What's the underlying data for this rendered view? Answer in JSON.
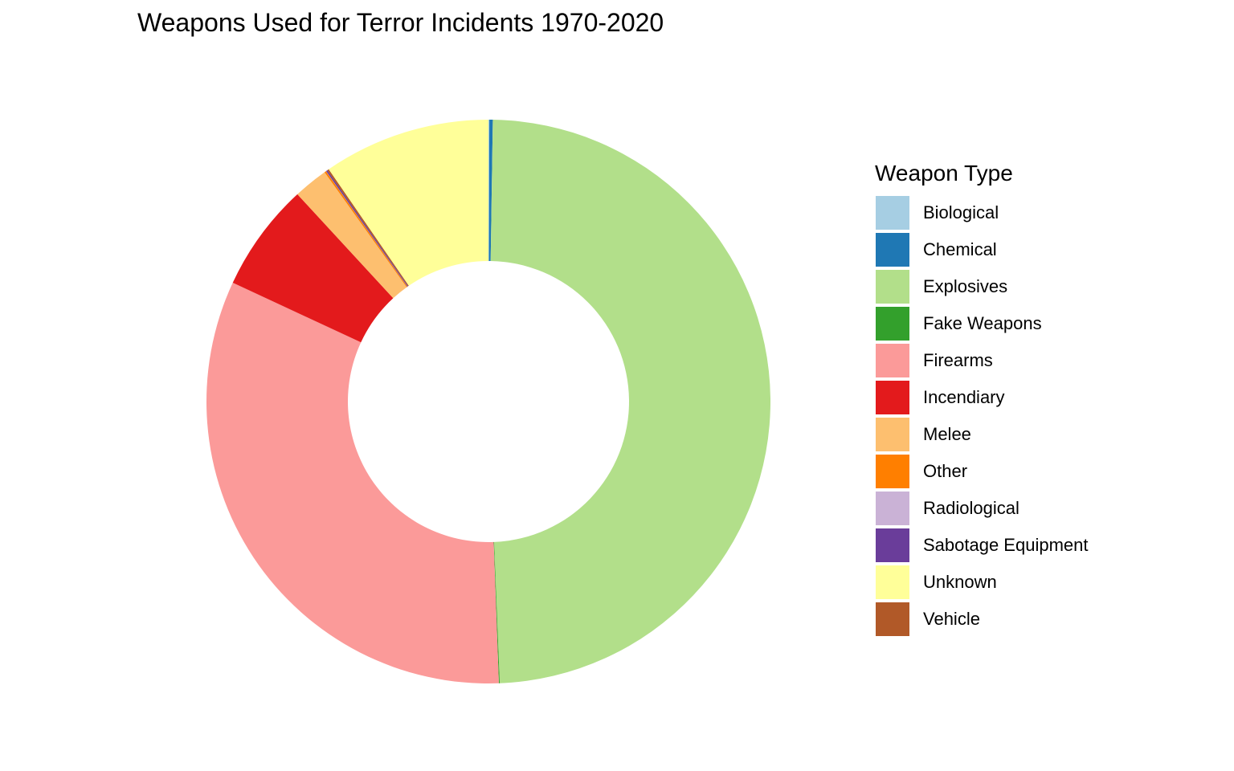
{
  "chart_data": {
    "type": "pie",
    "title": "Weapons Used for Terror Incidents 1970-2020",
    "legend_title": "Weapon Type",
    "legend_position": "right",
    "donut": true,
    "categories": [
      "Biological",
      "Chemical",
      "Explosives",
      "Fake Weapons",
      "Firearms",
      "Incendiary",
      "Melee",
      "Other",
      "Radiological",
      "Sabotage Equipment",
      "Unknown",
      "Vehicle"
    ],
    "colors": [
      "#A6CEE3",
      "#1F78B4",
      "#B2DF8A",
      "#33A02C",
      "#FB9A99",
      "#E31A1C",
      "#FDBF6F",
      "#FF7F00",
      "#CAB2D6",
      "#6A3D9A",
      "#FFFF99",
      "#B15928"
    ],
    "values": [
      0.05,
      0.2,
      49.7,
      0.05,
      32.9,
      6.3,
      2.0,
      0.1,
      0.01,
      0.08,
      9.7,
      0.1
    ],
    "slice_order": [
      "Biological",
      "Chemical",
      "Explosives",
      "Fake Weapons",
      "Firearms",
      "Incendiary",
      "Melee",
      "Other",
      "Radiological",
      "Sabotage Equipment",
      "Vehicle",
      "Unknown"
    ],
    "start_angle_deg": 0,
    "direction": "clockwise"
  }
}
